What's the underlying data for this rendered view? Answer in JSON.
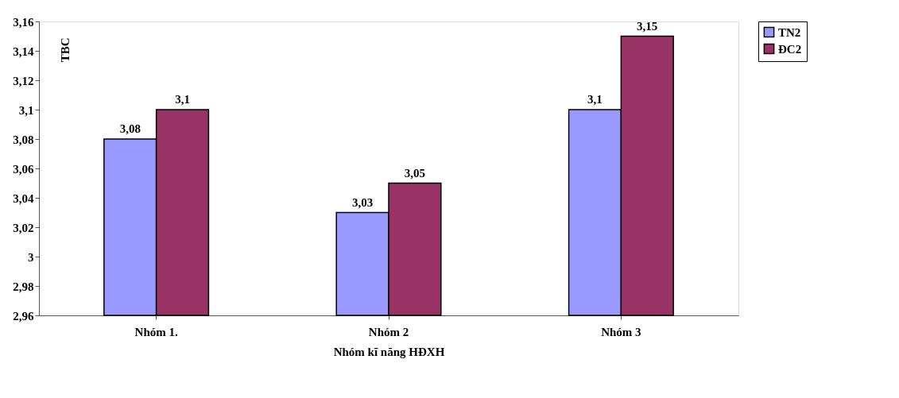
{
  "chart_data": {
    "type": "bar",
    "xlabel": "Nhóm kĩ năng HĐXH",
    "ylabel": "TBC",
    "categories": [
      "Nhóm 1.",
      "Nhóm 2",
      "Nhóm 3"
    ],
    "series": [
      {
        "name": "TN2",
        "color": "#9999ff",
        "values": [
          3.08,
          3.03,
          3.1
        ]
      },
      {
        "name": "ĐC2",
        "color": "#993366",
        "values": [
          3.1,
          3.05,
          3.15
        ]
      }
    ],
    "ylim": [
      2.96,
      3.16
    ],
    "yticks": [
      {
        "value": 2.96,
        "label": "2,96"
      },
      {
        "value": 2.98,
        "label": "2,98"
      },
      {
        "value": 3,
        "label": "3"
      },
      {
        "value": 3.02,
        "label": "3,02"
      },
      {
        "value": 3.04,
        "label": "3,04"
      },
      {
        "value": 3.06,
        "label": "3,06"
      },
      {
        "value": 3.08,
        "label": "3,08"
      },
      {
        "value": 3.1,
        "label": "3,1"
      },
      {
        "value": 3.12,
        "label": "3,12"
      },
      {
        "value": 3.14,
        "label": "3,14"
      },
      {
        "value": 3.16,
        "label": "3,16"
      }
    ],
    "value_labels": [
      [
        "3,08",
        "3,03",
        "3,1"
      ],
      [
        "3,1",
        "3,05",
        "3,15"
      ]
    ],
    "grid": false,
    "legend": "right"
  }
}
